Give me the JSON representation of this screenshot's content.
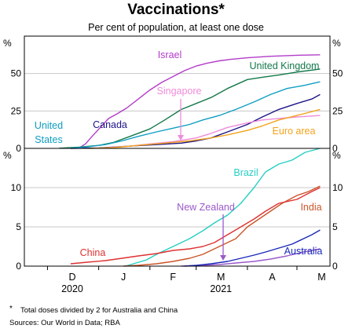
{
  "chart_data": {
    "type": "line",
    "title": "Vaccinations*",
    "subtitle": "Per cent of population, at least one dose",
    "footnote_marker": "*",
    "footnote": "Total doses divided by 2 for Australia and China",
    "sources": "Sources: Our World in Data; RBA",
    "x_tick_labels": [
      "D",
      "J",
      "F",
      "M",
      "A",
      "M"
    ],
    "x_year_labels": [
      "2020",
      "2021"
    ],
    "x_range": [
      "2020-11-17",
      "2021-05-21"
    ],
    "panels": [
      {
        "unit": "%",
        "ylim": [
          0,
          75
        ],
        "yticks": [
          0,
          25,
          50
        ],
        "grid": true,
        "series": [
          {
            "name": "Israel",
            "color": "#b23cc8",
            "points": [
              [
                "2020-12-20",
                0.2
              ],
              [
                "2020-12-24",
                3
              ],
              [
                "2020-12-28",
                8
              ],
              [
                "2021-01-02",
                14
              ],
              [
                "2021-01-07",
                20
              ],
              [
                "2021-01-12",
                23
              ],
              [
                "2021-01-18",
                27
              ],
              [
                "2021-01-25",
                33
              ],
              [
                "2021-02-01",
                39
              ],
              [
                "2021-02-08",
                44
              ],
              [
                "2021-02-15",
                48
              ],
              [
                "2021-02-22",
                52
              ],
              [
                "2021-03-01",
                55
              ],
              [
                "2021-03-08",
                57
              ],
              [
                "2021-03-15",
                58.5
              ],
              [
                "2021-03-22",
                59.5
              ],
              [
                "2021-04-01",
                60.5
              ],
              [
                "2021-04-15",
                61.5
              ],
              [
                "2021-05-01",
                62.2
              ],
              [
                "2021-05-15",
                62.5
              ]
            ]
          },
          {
            "name": "United Kingdom",
            "color": "#13784a",
            "points": [
              [
                "2020-12-08",
                0.1
              ],
              [
                "2020-12-20",
                0.8
              ],
              [
                "2021-01-01",
                2
              ],
              [
                "2021-01-10",
                4
              ],
              [
                "2021-01-20",
                8
              ],
              [
                "2021-02-01",
                13
              ],
              [
                "2021-02-10",
                19
              ],
              [
                "2021-02-20",
                26
              ],
              [
                "2021-03-01",
                30
              ],
              [
                "2021-03-10",
                34
              ],
              [
                "2021-03-20",
                40
              ],
              [
                "2021-04-01",
                46
              ],
              [
                "2021-04-10",
                47.5
              ],
              [
                "2021-04-20",
                49
              ],
              [
                "2021-05-01",
                51
              ],
              [
                "2021-05-15",
                53
              ]
            ]
          },
          {
            "name": "Canada",
            "color": "#1d1485",
            "points": [
              [
                "2020-12-15",
                0
              ],
              [
                "2021-01-01",
                0.3
              ],
              [
                "2021-01-20",
                1.5
              ],
              [
                "2021-02-05",
                2.5
              ],
              [
                "2021-02-20",
                3.5
              ],
              [
                "2021-03-01",
                5
              ],
              [
                "2021-03-10",
                7
              ],
              [
                "2021-03-20",
                11
              ],
              [
                "2021-04-01",
                16
              ],
              [
                "2021-04-10",
                21
              ],
              [
                "2021-04-20",
                26
              ],
              [
                "2021-05-01",
                30
              ],
              [
                "2021-05-10",
                33
              ],
              [
                "2021-05-15",
                36
              ]
            ]
          },
          {
            "name": "Singapore",
            "color": "#ef8bd9",
            "points": [
              [
                "2021-01-01",
                0.1
              ],
              [
                "2021-01-20",
                1.5
              ],
              [
                "2021-02-01",
                3
              ],
              [
                "2021-02-15",
                4.5
              ],
              [
                "2021-03-01",
                7
              ],
              [
                "2021-03-10",
                10
              ],
              [
                "2021-03-20",
                14
              ],
              [
                "2021-04-01",
                17
              ],
              [
                "2021-04-10",
                19
              ],
              [
                "2021-04-20",
                20
              ],
              [
                "2021-05-01",
                21
              ],
              [
                "2021-05-15",
                22
              ]
            ]
          },
          {
            "name": "United States",
            "color": "#0f9ec2",
            "points": [
              [
                "2020-12-14",
                0.1
              ],
              [
                "2020-12-25",
                1
              ],
              [
                "2021-01-05",
                2.5
              ],
              [
                "2021-01-15",
                5
              ],
              [
                "2021-01-25",
                8
              ],
              [
                "2021-02-05",
                11
              ],
              [
                "2021-02-15",
                13.5
              ],
              [
                "2021-02-25",
                16
              ],
              [
                "2021-03-05",
                19
              ],
              [
                "2021-03-15",
                22
              ],
              [
                "2021-03-25",
                26
              ],
              [
                "2021-04-05",
                31
              ],
              [
                "2021-04-15",
                36
              ],
              [
                "2021-04-25",
                40
              ],
              [
                "2021-05-05",
                42
              ],
              [
                "2021-05-15",
                44.5
              ]
            ]
          },
          {
            "name": "Euro area",
            "color": "#f2a31b",
            "points": [
              [
                "2020-12-27",
                0
              ],
              [
                "2021-01-10",
                0.5
              ],
              [
                "2021-01-25",
                2
              ],
              [
                "2021-02-10",
                3.5
              ],
              [
                "2021-02-25",
                5
              ],
              [
                "2021-03-10",
                7
              ],
              [
                "2021-03-20",
                9
              ],
              [
                "2021-04-01",
                12
              ],
              [
                "2021-04-10",
                15
              ],
              [
                "2021-04-20",
                19
              ],
              [
                "2021-05-01",
                22
              ],
              [
                "2021-05-15",
                26
              ]
            ]
          }
        ],
        "annotations": [
          {
            "text": "Israel",
            "color": "#b23cc8"
          },
          {
            "text": "United Kingdom",
            "color": "#13784a"
          },
          {
            "text": "Singapore",
            "color": "#ef8bd9"
          },
          {
            "text": "Canada",
            "color": "#1d1485"
          },
          {
            "text": "United",
            "color": "#0f9ec2"
          },
          {
            "text": "States",
            "color": "#0f9ec2"
          },
          {
            "text": "Euro area",
            "color": "#f2a31b"
          }
        ]
      },
      {
        "unit": "%",
        "ylim": [
          0,
          15
        ],
        "yticks": [
          0,
          5,
          10
        ],
        "grid": true,
        "series": [
          {
            "name": "Brazil",
            "color": "#25cfc4",
            "points": [
              [
                "2021-01-17",
                0
              ],
              [
                "2021-01-22",
                0.3
              ],
              [
                "2021-01-30",
                0.8
              ],
              [
                "2021-02-05",
                1.5
              ],
              [
                "2021-02-15",
                2.5
              ],
              [
                "2021-02-25",
                3.5
              ],
              [
                "2021-03-05",
                4.5
              ],
              [
                "2021-03-12",
                5.5
              ],
              [
                "2021-03-20",
                6.5
              ],
              [
                "2021-03-28",
                8
              ],
              [
                "2021-04-05",
                10
              ],
              [
                "2021-04-12",
                12
              ],
              [
                "2021-04-20",
                13
              ],
              [
                "2021-04-28",
                13.5
              ],
              [
                "2021-05-06",
                14.5
              ],
              [
                "2021-05-15",
                15
              ]
            ]
          },
          {
            "name": "India",
            "color": "#cc5528",
            "points": [
              [
                "2021-01-16",
                0
              ],
              [
                "2021-01-25",
                0.1
              ],
              [
                "2021-02-05",
                0.3
              ],
              [
                "2021-02-15",
                0.6
              ],
              [
                "2021-02-25",
                1
              ],
              [
                "2021-03-05",
                1.5
              ],
              [
                "2021-03-15",
                2.5
              ],
              [
                "2021-03-25",
                3.5
              ],
              [
                "2021-04-01",
                5
              ],
              [
                "2021-04-08",
                6
              ],
              [
                "2021-04-15",
                7
              ],
              [
                "2021-04-22",
                8
              ],
              [
                "2021-05-01",
                9
              ],
              [
                "2021-05-08",
                9.5
              ],
              [
                "2021-05-15",
                10.2
              ]
            ]
          },
          {
            "name": "China",
            "color": "#dd3131",
            "points": [
              [
                "2020-12-15",
                0.3
              ],
              [
                "2020-12-25",
                0.5
              ],
              [
                "2021-01-05",
                0.7
              ],
              [
                "2021-01-15",
                1
              ],
              [
                "2021-01-25",
                1.3
              ],
              [
                "2021-02-05",
                1.6
              ],
              [
                "2021-02-15",
                2
              ],
              [
                "2021-02-25",
                2.2
              ],
              [
                "2021-03-05",
                2.5
              ],
              [
                "2021-03-12",
                3
              ],
              [
                "2021-03-20",
                4
              ],
              [
                "2021-03-28",
                5
              ],
              [
                "2021-04-05",
                6
              ],
              [
                "2021-04-12",
                7
              ],
              [
                "2021-04-20",
                8
              ],
              [
                "2021-05-01",
                8.5
              ],
              [
                "2021-05-10",
                9.5
              ],
              [
                "2021-05-15",
                10
              ]
            ]
          },
          {
            "name": "New Zealand",
            "color": "#9b5acb",
            "points": [
              [
                "2021-02-20",
                0
              ],
              [
                "2021-03-05",
                0.1
              ],
              [
                "2021-03-15",
                0.2
              ],
              [
                "2021-03-25",
                0.4
              ],
              [
                "2021-04-05",
                0.6
              ],
              [
                "2021-04-15",
                0.9
              ],
              [
                "2021-04-25",
                1.3
              ],
              [
                "2021-05-05",
                1.8
              ],
              [
                "2021-05-15",
                2.2
              ]
            ]
          },
          {
            "name": "Australia",
            "color": "#1a28b8",
            "points": [
              [
                "2021-02-22",
                0
              ],
              [
                "2021-03-01",
                0.1
              ],
              [
                "2021-03-10",
                0.3
              ],
              [
                "2021-03-20",
                0.6
              ],
              [
                "2021-03-28",
                1
              ],
              [
                "2021-04-05",
                1.4
              ],
              [
                "2021-04-12",
                1.8
              ],
              [
                "2021-04-20",
                2.3
              ],
              [
                "2021-04-28",
                2.8
              ],
              [
                "2021-05-05",
                3.5
              ],
              [
                "2021-05-10",
                4
              ],
              [
                "2021-05-15",
                4.6
              ]
            ]
          }
        ],
        "annotations": [
          {
            "text": "Brazil",
            "color": "#25cfc4"
          },
          {
            "text": "New Zealand",
            "color": "#9b5acb"
          },
          {
            "text": "India",
            "color": "#cc5528"
          },
          {
            "text": "China",
            "color": "#dd3131"
          },
          {
            "text": "Australia",
            "color": "#1a28b8"
          }
        ]
      }
    ]
  }
}
